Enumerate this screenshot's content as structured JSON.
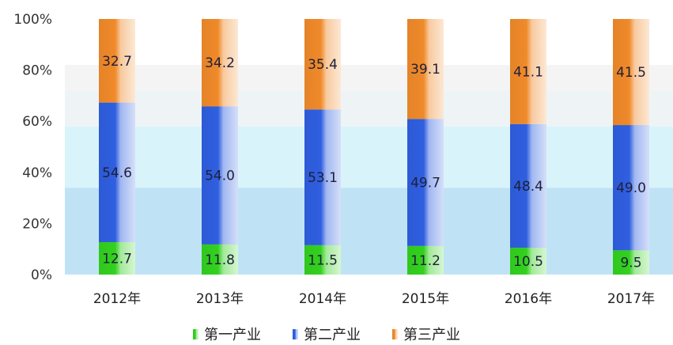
{
  "chart_data": {
    "type": "bar",
    "stacked": true,
    "percent_stacked": true,
    "categories": [
      "2012年",
      "2013年",
      "2014年",
      "2015年",
      "2016年",
      "2017年"
    ],
    "series": [
      {
        "name": "第一产业",
        "values": [
          12.7,
          11.8,
          11.5,
          11.2,
          10.5,
          9.5
        ],
        "color": "#33d11f"
      },
      {
        "name": "第二产业",
        "values": [
          54.6,
          54.0,
          53.1,
          49.7,
          48.4,
          49.0
        ],
        "color": "#2f5fe0"
      },
      {
        "name": "第三产业",
        "values": [
          32.7,
          34.2,
          35.4,
          39.1,
          41.1,
          41.5
        ],
        "color": "#f08a2a"
      }
    ],
    "yticks": [
      "0%",
      "20%",
      "40%",
      "60%",
      "80%",
      "100%"
    ],
    "ylim": [
      0,
      100
    ],
    "legend_position": "bottom",
    "background_bands": [
      {
        "from": 0,
        "to": 34,
        "color": "#bfe3f5"
      },
      {
        "from": 34,
        "to": 58,
        "color": "#d9f3fb"
      },
      {
        "from": 58,
        "to": 72,
        "color": "#eef4f6"
      },
      {
        "from": 72,
        "to": 82,
        "color": "#f4f4f4"
      },
      {
        "from": 82,
        "to": 100,
        "color": "#ffffff"
      }
    ]
  }
}
